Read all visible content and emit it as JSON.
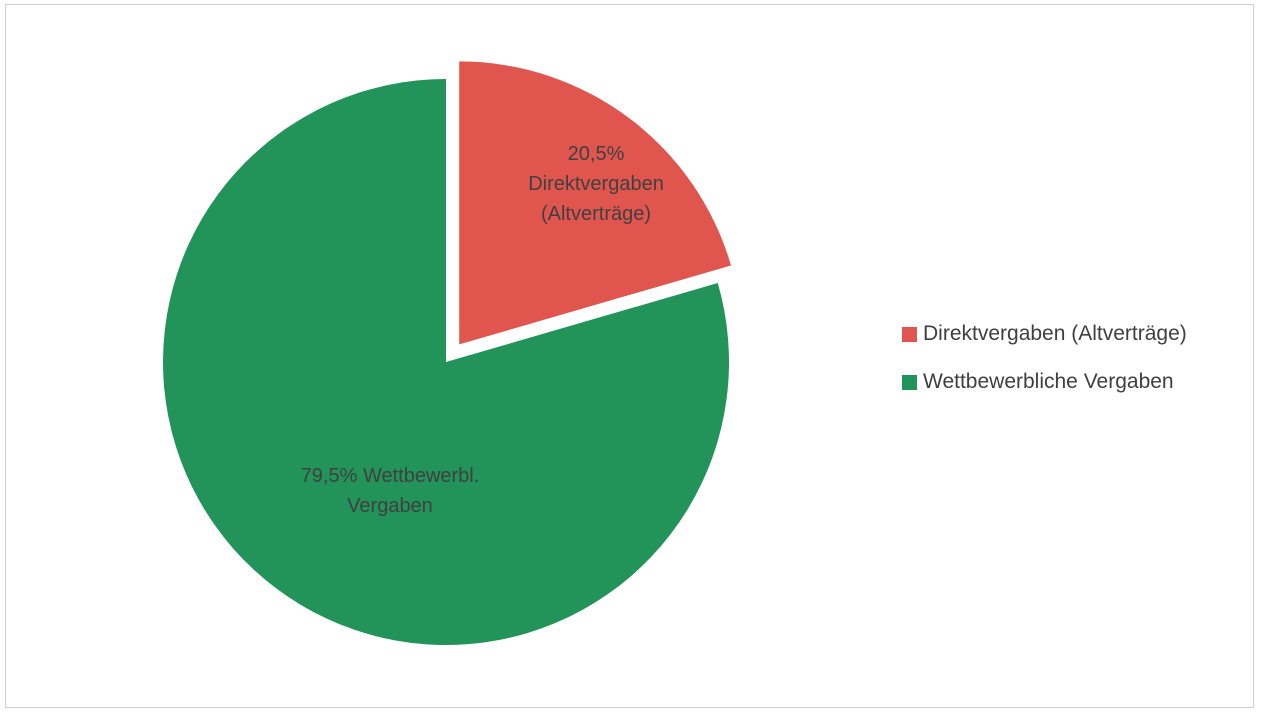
{
  "chart_data": {
    "type": "pie",
    "exploded_slice": "Direktvergaben (Altverträge)",
    "legend_position": "right",
    "slices": [
      {
        "name": "Direktvergaben (Altverträge)",
        "value": 20.5,
        "color": "#e0564e",
        "data_label_lines": [
          "20,5%",
          "Direktvergaben",
          "(Altverträge)"
        ]
      },
      {
        "name": "Wettbewerbliche Vergaben",
        "value": 79.5,
        "color": "#229359",
        "data_label_lines": [
          "79,5% Wettbewerbl.",
          "Vergaben"
        ]
      }
    ]
  }
}
